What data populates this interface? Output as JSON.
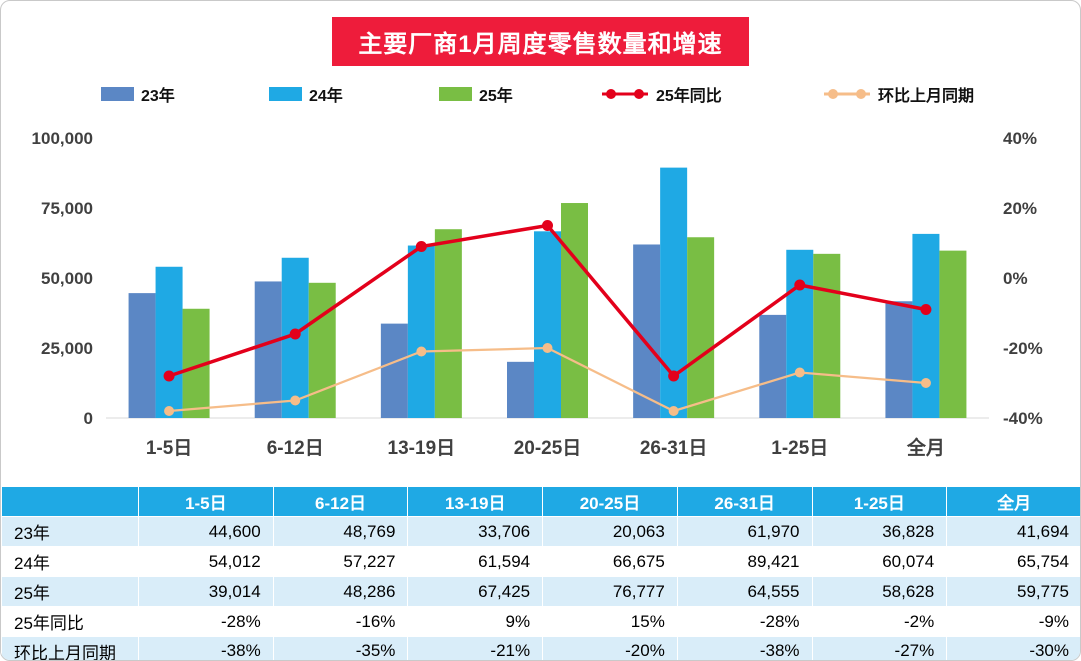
{
  "title": "主要厂商1月周度零售数量和增速",
  "legend": [
    {
      "label": "23年",
      "type": "bar",
      "color": "#5B87C5"
    },
    {
      "label": "24年",
      "type": "bar",
      "color": "#1FA9E4"
    },
    {
      "label": "25年",
      "type": "bar",
      "color": "#79BE44"
    },
    {
      "label": "25年同比",
      "type": "line",
      "color": "#E3001B"
    },
    {
      "label": "环比上月同期",
      "type": "line",
      "color": "#F6BD89"
    }
  ],
  "chart_data": {
    "type": "bar+line",
    "title": "主要厂商1月周度零售数量和增速",
    "categories": [
      "1-5日",
      "6-12日",
      "13-19日",
      "20-25日",
      "26-31日",
      "1-25日",
      "全月"
    ],
    "bar_series": [
      {
        "name": "23年",
        "color": "#5B87C5",
        "axis": "left",
        "values": [
          44600,
          48769,
          33706,
          20063,
          61970,
          36828,
          41694
        ]
      },
      {
        "name": "24年",
        "color": "#1FA9E4",
        "axis": "left",
        "values": [
          54012,
          57227,
          61594,
          66675,
          89421,
          60074,
          65754
        ]
      },
      {
        "name": "25年",
        "color": "#79BE44",
        "axis": "left",
        "values": [
          39014,
          48286,
          67425,
          76777,
          64555,
          58628,
          59775
        ]
      }
    ],
    "line_series": [
      {
        "name": "25年同比",
        "color": "#E3001B",
        "axis": "right",
        "values_pct": [
          -28,
          -16,
          9,
          15,
          -28,
          -2,
          -9
        ]
      },
      {
        "name": "环比上月同期",
        "color": "#F6BD89",
        "axis": "right",
        "values_pct": [
          -38,
          -35,
          -21,
          -20,
          -38,
          -27,
          -30
        ]
      }
    ],
    "left_axis": {
      "min": 0,
      "max": 100000,
      "ticks": [
        "0",
        "25,000",
        "50,000",
        "75,000",
        "100,000"
      ]
    },
    "right_axis": {
      "min": -40,
      "max": 40,
      "ticks": [
        "-40%",
        "-20%",
        "0%",
        "20%",
        "40%"
      ]
    },
    "grid": false,
    "legend_position": "top"
  },
  "table": {
    "header": [
      "",
      "1-5日",
      "6-12日",
      "13-19日",
      "20-25日",
      "26-31日",
      "1-25日",
      "全月"
    ],
    "rows": [
      {
        "label": "23年",
        "values": [
          "44,600",
          "48,769",
          "33,706",
          "20,063",
          "61,970",
          "36,828",
          "41,694"
        ]
      },
      {
        "label": "24年",
        "values": [
          "54,012",
          "57,227",
          "61,594",
          "66,675",
          "89,421",
          "60,074",
          "65,754"
        ]
      },
      {
        "label": "25年",
        "values": [
          "39,014",
          "48,286",
          "67,425",
          "76,777",
          "64,555",
          "58,628",
          "59,775"
        ]
      },
      {
        "label": "25年同比",
        "values": [
          "-28%",
          "-16%",
          "9%",
          "15%",
          "-28%",
          "-2%",
          "-9%"
        ]
      },
      {
        "label": "环比上月同期",
        "values": [
          "-38%",
          "-35%",
          "-21%",
          "-20%",
          "-38%",
          "-27%",
          "-30%"
        ]
      }
    ]
  },
  "colors": {
    "title_bg": "#EE1C3B",
    "title_text": "#FFFFFF",
    "header_bg": "#1FA9E4",
    "row_alt_bg": "#D9EDF9",
    "axis_text": "#404040"
  }
}
